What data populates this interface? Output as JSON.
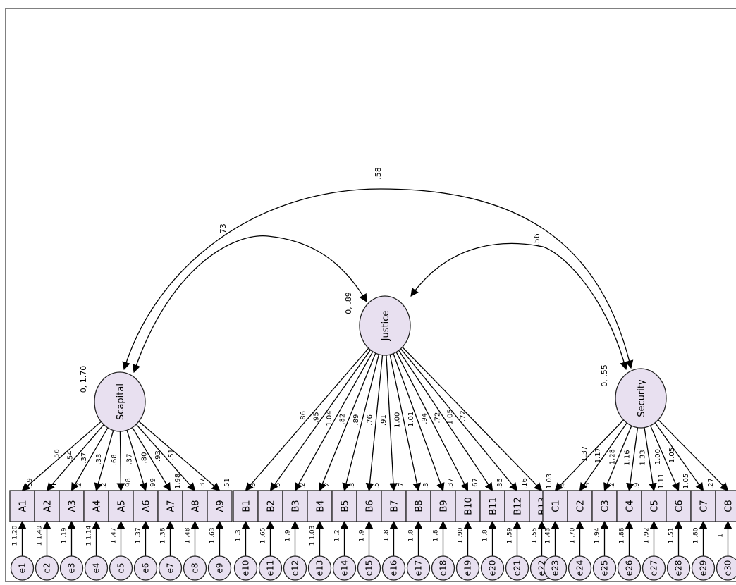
{
  "latent": [
    {
      "id": "Scapital",
      "label": "Scapital",
      "variance": "0, 1.70"
    },
    {
      "id": "Justice",
      "label": "Justice",
      "variance": "0, .89"
    },
    {
      "id": "Security",
      "label": "Security",
      "variance": "0, .55"
    }
  ],
  "covariances": [
    {
      "from": "Scapital",
      "to": "Justice",
      "value": ".73"
    },
    {
      "from": "Justice",
      "to": "Security",
      "value": ".56"
    },
    {
      "from": "Scapital",
      "to": "Security",
      "value": ".58"
    }
  ],
  "observed": {
    "Scapital": [
      {
        "label": "A1",
        "intercept": ".59",
        "error": "e1",
        "error_label": "1 1.20",
        "loading": ".56"
      },
      {
        "label": "A2",
        "intercept": ".1",
        "error": "e2",
        "error_label": "1 1.49",
        "loading": ".54"
      },
      {
        "label": "A3",
        "intercept": ".2",
        "error": "e3",
        "error_label": "1 .19",
        "loading": ".37"
      },
      {
        "label": "A4",
        "intercept": ".2",
        "error": "e4",
        "error_label": "1 1.14",
        "loading": ".33"
      },
      {
        "label": "A5",
        "intercept": ".98",
        "error": "e5",
        "error_label": "1 .47",
        "loading": ".68"
      },
      {
        "label": "A6",
        "intercept": ".99",
        "error": "e6",
        "error_label": "1 .37",
        "loading": ".37"
      },
      {
        "label": "A7",
        "intercept": "1.98",
        "error": "e7",
        "error_label": "1 .38",
        "loading": ".80"
      },
      {
        "label": "A8",
        "intercept": ".37",
        "error": "e8",
        "error_label": "1 .48",
        "loading": ".93"
      },
      {
        "label": "A9",
        "intercept": ".51",
        "error": "e9",
        "error_label": "1 .63",
        "loading": ".51"
      }
    ],
    "Justice": [
      {
        "label": "B1",
        "intercept": ".3",
        "error": "e10",
        "error_label": "1 .3",
        "loading": ".86"
      },
      {
        "label": "B2",
        "intercept": ".5",
        "error": "e11",
        "error_label": "1 .65",
        "loading": ".95"
      },
      {
        "label": "B3",
        "intercept": ".2",
        "error": "e12",
        "error_label": "1 .9",
        "loading": "1.04"
      },
      {
        "label": "B4",
        "intercept": ".2",
        "error": "e13",
        "error_label": "1 1.03",
        "loading": ".82"
      },
      {
        "label": "B5",
        "intercept": ".3",
        "error": "e14",
        "error_label": "1 .2",
        "loading": ".89"
      },
      {
        "label": "B6",
        "intercept": ".5",
        "error": "e15",
        "error_label": "1 .9",
        "loading": ".76"
      },
      {
        "label": "B7",
        "intercept": ".7",
        "error": "e16",
        "error_label": "1 .8",
        "loading": ".91"
      },
      {
        "label": "B8",
        "intercept": ".3",
        "error": "e17",
        "error_label": "1 .8",
        "loading": "1.00"
      },
      {
        "label": "B9",
        "intercept": ".37",
        "error": "e18",
        "error_label": "1 .8",
        "loading": "1.01"
      },
      {
        "label": "B10",
        "intercept": ".67",
        "error": "e19",
        "error_label": "1 .90",
        "loading": ".94"
      },
      {
        "label": "B11",
        "intercept": ".35",
        "error": "e20",
        "error_label": "1 .8",
        "loading": ".72"
      },
      {
        "label": "B12",
        "intercept": ".16",
        "error": "e21",
        "error_label": "1 .59",
        "loading": "1.05"
      },
      {
        "label": "B13",
        "intercept": "1.03",
        "error": "e22",
        "error_label": "1 .55",
        "loading": ".72"
      }
    ],
    "Security": [
      {
        "label": "C1",
        "intercept": ".4",
        "error": "e23",
        "error_label": "1 .43",
        "loading": "1.37"
      },
      {
        "label": "C2",
        "intercept": ".3",
        "error": "e24",
        "error_label": "1 .70",
        "loading": "1.17"
      },
      {
        "label": "C3",
        "intercept": ".2",
        "error": "e25",
        "error_label": "1 .94",
        "loading": "1.28"
      },
      {
        "label": "C4",
        "intercept": ".9",
        "error": "e26",
        "error_label": "1 .88",
        "loading": "1.16"
      },
      {
        "label": "C5",
        "intercept": "1.11",
        "error": "e27",
        "error_label": "1 .92",
        "loading": "1.33"
      },
      {
        "label": "C6",
        "intercept": "1.05",
        "error": "e28",
        "error_label": "1 .51",
        "loading": "1.00"
      },
      {
        "label": "C7",
        "intercept": ".27",
        "error": "e29",
        "error_label": "1 .80",
        "loading": "1.05"
      },
      {
        "label": "C8",
        "intercept": "",
        "error": "e30",
        "error_label": "1",
        "loading": ""
      }
    ]
  },
  "colors": {
    "node_fill": "#e8e0f0",
    "stroke": "#222222",
    "background": "#ffffff"
  }
}
